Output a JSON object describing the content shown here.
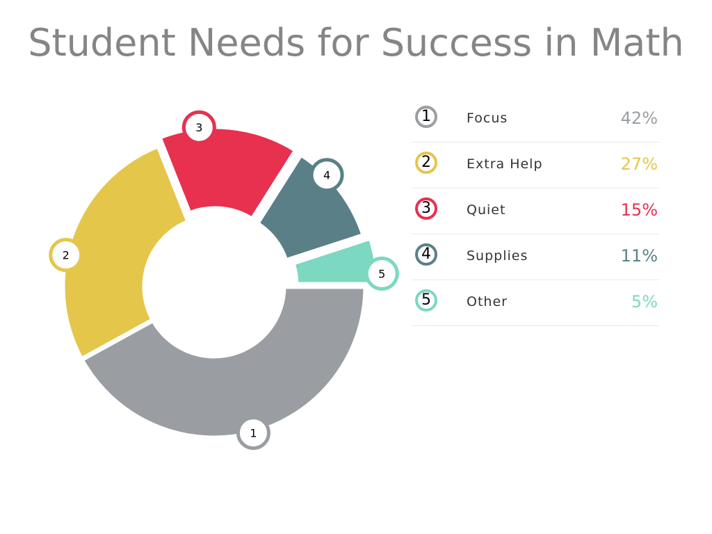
{
  "chart_data": {
    "type": "pie",
    "title": "Student Needs for Success in Math",
    "categories": [
      "Focus",
      "Extra Help",
      "Quiet",
      "Supplies",
      "Other"
    ],
    "values": [
      42,
      27,
      15,
      11,
      5
    ],
    "value_labels": [
      "42%",
      "27%",
      "15%",
      "11%",
      "5%"
    ],
    "markers": [
      "1",
      "2",
      "3",
      "4",
      "5"
    ],
    "colors": [
      "#9a9ea2",
      "#e4c64b",
      "#e8304f",
      "#5a7f87",
      "#7cd8c0"
    ],
    "style": "donut",
    "legend_position": "right"
  }
}
